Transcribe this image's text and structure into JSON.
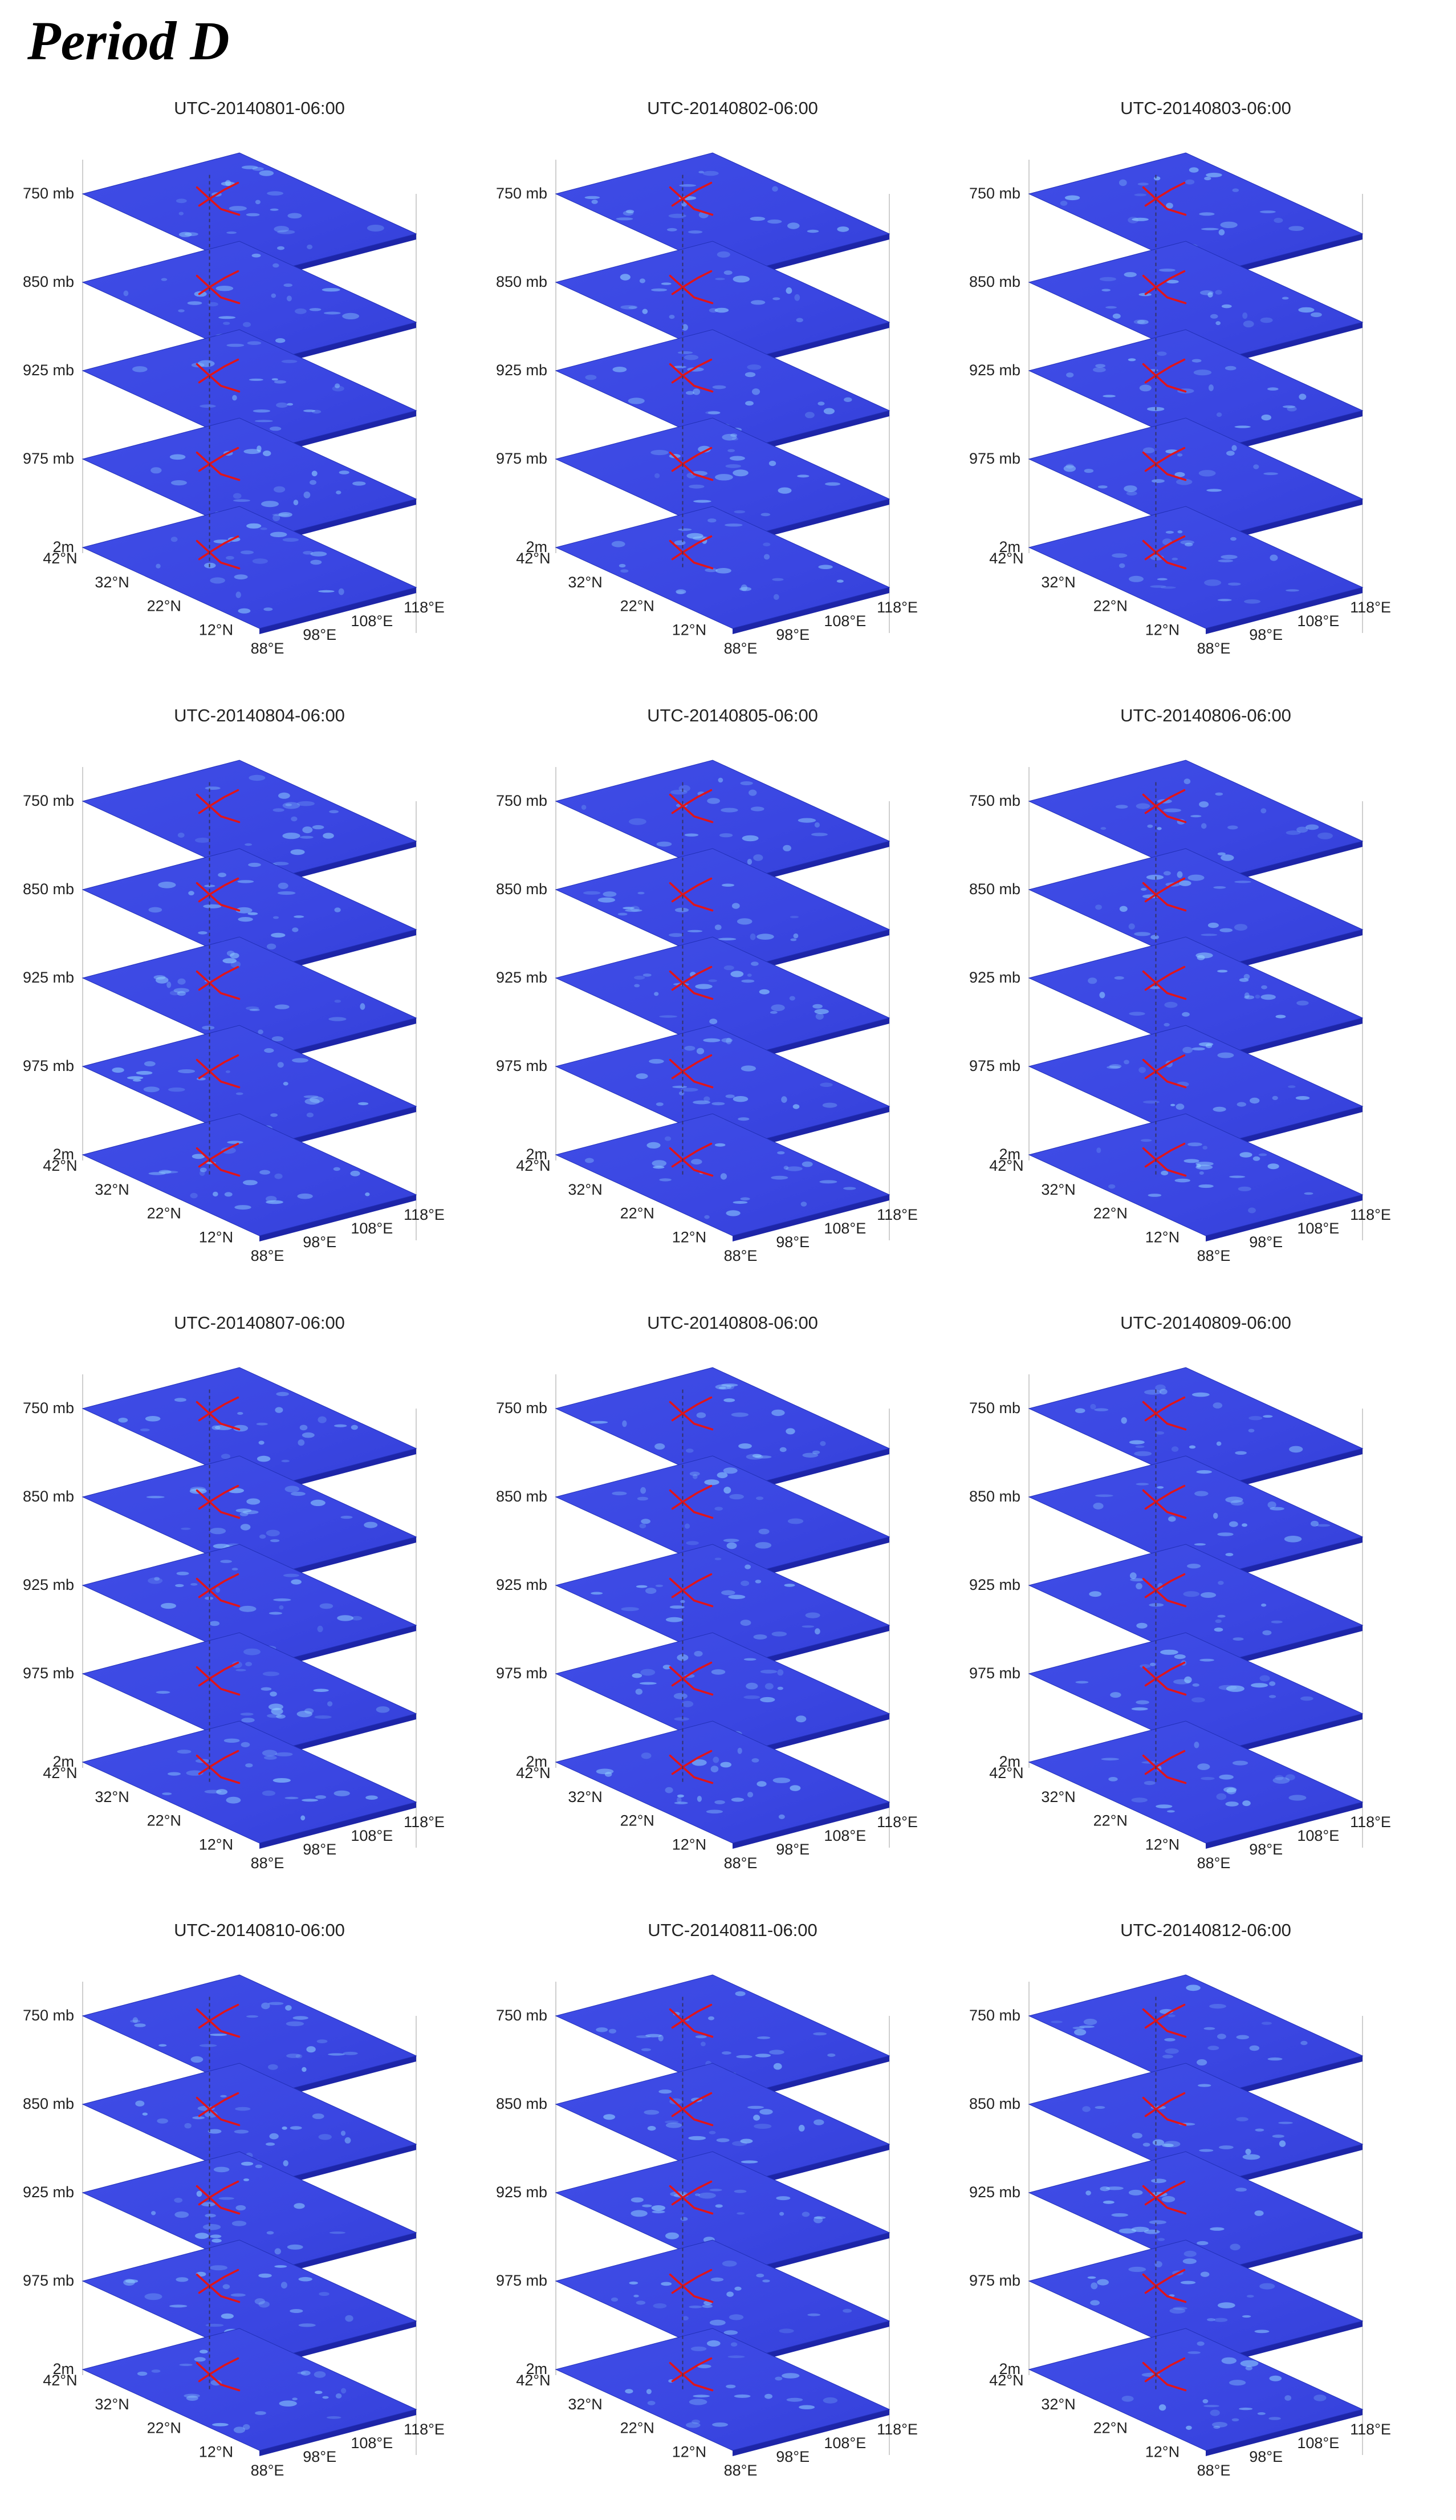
{
  "page": {
    "title": "Period D"
  },
  "colors": {
    "plane_fill": "#3a46e2",
    "plane_edge": "#2230b8",
    "plane_band": "#1d25a8",
    "hotspot": "#8fd0ff",
    "river": "#e0141a",
    "axis_line": "#cfcfcf",
    "grid_line": "#e4e4e4"
  },
  "chart_data": {
    "type": "heatmap",
    "layout": "4 rows x 3 columns of 3D stacked horizontal slices",
    "levels": [
      "750 mb",
      "850 mb",
      "925 mb",
      "975 mb",
      "2m"
    ],
    "lat_ticks": [
      "42°N",
      "32°N",
      "22°N",
      "12°N"
    ],
    "lon_ticks": [
      "88°E",
      "98°E",
      "108°E",
      "118°E"
    ],
    "lat_range": [
      12,
      42
    ],
    "lon_range": [
      88,
      118
    ],
    "colormap": "jet (dark blue = low)",
    "overlay": "red river network with vertical dashed profile line",
    "panels": [
      {
        "title": "UTC-20140801-06:00"
      },
      {
        "title": "UTC-20140802-06:00"
      },
      {
        "title": "UTC-20140803-06:00"
      },
      {
        "title": "UTC-20140804-06:00"
      },
      {
        "title": "UTC-20140805-06:00"
      },
      {
        "title": "UTC-20140806-06:00"
      },
      {
        "title": "UTC-20140807-06:00"
      },
      {
        "title": "UTC-20140808-06:00"
      },
      {
        "title": "UTC-20140809-06:00"
      },
      {
        "title": "UTC-20140810-06:00"
      },
      {
        "title": "UTC-20140811-06:00"
      },
      {
        "title": "UTC-20140812-06:00"
      }
    ]
  }
}
